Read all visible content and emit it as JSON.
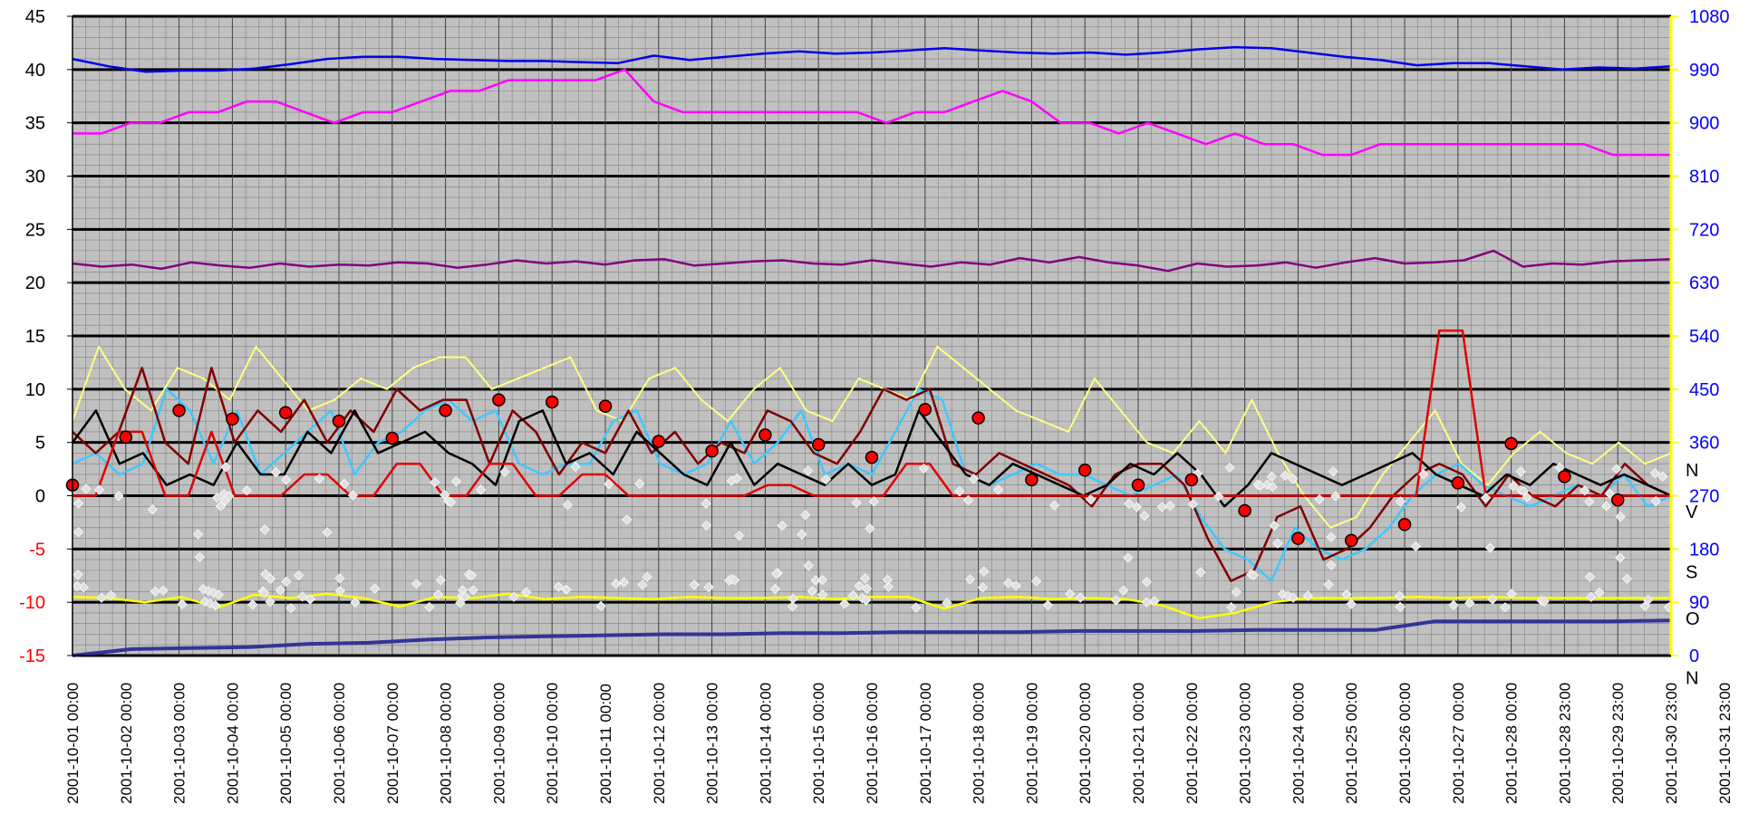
{
  "chart_data": {
    "type": "line",
    "title": "",
    "xlabel": "",
    "ylabel": "",
    "ylim": [
      -15,
      45
    ],
    "y2lim": [
      0,
      1080
    ],
    "grid": true,
    "legend": "none",
    "x_tick_labels": [
      "2001-10-01 00:00",
      "2001-10-02 00:00",
      "2001-10-03 00:00",
      "2001-10-04 00:00",
      "2001-10-05 00:00",
      "2001-10-06 00:00",
      "2001-10-07 00:00",
      "2001-10-08 00:00",
      "2001-10-09 00:00",
      "2001-10-10 00:00",
      "2001-10-11 00:00",
      "2001-10-12 00:00",
      "2001-10-13 00:00",
      "2001-10-14 00:00",
      "2001-10-15 00:00",
      "2001-10-16 00:00",
      "2001-10-17 00:00",
      "2001-10-18 00:00",
      "2001-10-19 00:00",
      "2001-10-20 00:00",
      "2001-10-21 00:00",
      "2001-10-22 00:00",
      "2001-10-23 00:00",
      "2001-10-24 00:00",
      "2001-10-25 00:00",
      "2001-10-26 00:00",
      "2001-10-27 00:00",
      "2001-10-28 00:00",
      "2001-10-28 23:00",
      "2001-10-29 23:00",
      "2001-10-30 23:00",
      "2001-10-31 23:00"
    ],
    "y_ticks_left": [
      "45",
      "40",
      "35",
      "30",
      "25",
      "20",
      "15",
      "10",
      "5",
      "0",
      "-5",
      "-10",
      "-15"
    ],
    "y_ticks_right": [
      "1080",
      "990",
      "900",
      "810",
      "720",
      "630",
      "540",
      "450",
      "360",
      "270",
      "180",
      "90",
      "0"
    ],
    "compass_labels": [
      {
        "text": "N",
        "value": 315
      },
      {
        "text": "V",
        "value": 245
      },
      {
        "text": "S",
        "value": 143
      },
      {
        "text": "O",
        "value": 64
      },
      {
        "text": "N",
        "value": -36
      }
    ],
    "series": [
      {
        "color": "#0000ee",
        "axis": "left",
        "values": [
          41,
          40.3,
          39.8,
          39.9,
          39.9,
          40.1,
          40.5,
          41,
          41.2,
          41.2,
          41,
          40.9,
          40.8,
          40.8,
          40.7,
          40.6,
          41.3,
          40.9,
          41.2,
          41.5,
          41.7,
          41.5,
          41.6,
          41.8,
          42,
          41.8,
          41.6,
          41.5,
          41.6,
          41.4,
          41.6,
          41.9,
          42.1,
          42,
          41.6,
          41.2,
          40.9,
          40.4,
          40.6,
          40.6,
          40.3,
          40,
          40.2,
          40.1,
          40.3
        ]
      },
      {
        "color": "#ff00ff",
        "axis": "left",
        "values": [
          34,
          34,
          35,
          35,
          36,
          36,
          37,
          37,
          36,
          35,
          36,
          36,
          37,
          38,
          38,
          39,
          39,
          39,
          39,
          40,
          37,
          36,
          36,
          36,
          36,
          36,
          36,
          36,
          35,
          36,
          36,
          37,
          38,
          37,
          35,
          35,
          34,
          35,
          34,
          33,
          34,
          33,
          33,
          32,
          32,
          33,
          33,
          33,
          33,
          33,
          33,
          33,
          33,
          32,
          32,
          32
        ]
      },
      {
        "color": "#800080",
        "axis": "left",
        "values": [
          21.8,
          21.5,
          21.7,
          21.3,
          21.9,
          21.6,
          21.4,
          21.8,
          21.5,
          21.7,
          21.6,
          21.9,
          21.8,
          21.4,
          21.7,
          22.1,
          21.8,
          22,
          21.7,
          22.1,
          22.2,
          21.6,
          21.8,
          22,
          22.1,
          21.8,
          21.7,
          22.1,
          21.8,
          21.5,
          21.9,
          21.7,
          22.3,
          21.9,
          22.4,
          21.9,
          21.6,
          21.1,
          21.8,
          21.5,
          21.6,
          21.9,
          21.4,
          21.9,
          22.3,
          21.8,
          21.9,
          22.1,
          23,
          21.5,
          21.8,
          21.7,
          22,
          22.1,
          22.2
        ]
      },
      {
        "color": "#ffff80",
        "axis": "left",
        "values": [
          7,
          14,
          10,
          8,
          12,
          11,
          9,
          14,
          11,
          8,
          9,
          11,
          10,
          12,
          13,
          13,
          10,
          11,
          12,
          13,
          8,
          7,
          11,
          12,
          9,
          7,
          10,
          12,
          8,
          7,
          11,
          10,
          9,
          14,
          12,
          10,
          8,
          7,
          6,
          11,
          8,
          5,
          4,
          7,
          4,
          9,
          4,
          0,
          -3,
          -2,
          2,
          5,
          8,
          3,
          1,
          4,
          6,
          4,
          3,
          5,
          3,
          4
        ]
      },
      {
        "color": "#40c8ff",
        "axis": "left",
        "values": [
          3,
          4,
          2,
          3,
          10,
          8,
          3,
          8,
          2,
          4,
          6,
          8,
          2,
          5,
          6,
          8,
          9,
          7,
          8,
          3,
          2,
          3,
          3,
          7,
          8,
          3,
          2,
          3,
          7,
          3,
          5,
          8,
          2,
          3,
          2,
          6,
          10,
          9,
          2,
          1,
          2,
          3,
          2,
          2,
          1,
          0,
          1,
          2,
          -2,
          -5,
          -6,
          -8,
          -3,
          -5,
          -6,
          -5,
          -3,
          0,
          2,
          3,
          1,
          0,
          -1,
          0,
          1,
          0,
          2,
          -1,
          0
        ]
      },
      {
        "color": "#800000",
        "axis": "left",
        "values": [
          6,
          4,
          6,
          12,
          5,
          3,
          12,
          5,
          8,
          6,
          9,
          5,
          8,
          6,
          10,
          8,
          9,
          9,
          3,
          8,
          6,
          2,
          5,
          4,
          8,
          4,
          6,
          3,
          5,
          4,
          8,
          7,
          4,
          3,
          6,
          10,
          9,
          10,
          3,
          2,
          4,
          3,
          2,
          1,
          -1,
          2,
          3,
          3,
          1,
          -4,
          -8,
          -7,
          -2,
          -1,
          -6,
          -5,
          -3,
          0,
          2,
          3,
          2,
          -1,
          2,
          0,
          -1,
          1,
          0,
          3,
          1,
          0
        ]
      },
      {
        "color": "#000000",
        "axis": "left",
        "values": [
          5,
          8,
          3,
          4,
          1,
          2,
          1,
          5,
          2,
          2,
          6,
          4,
          8,
          4,
          5,
          6,
          4,
          3,
          1,
          7,
          8,
          3,
          4,
          2,
          6,
          4,
          2,
          1,
          5,
          1,
          3,
          2,
          1,
          3,
          1,
          2,
          8,
          5,
          2,
          1,
          3,
          2,
          1,
          0,
          1,
          3,
          2,
          4,
          2,
          -1,
          1,
          4,
          3,
          2,
          1,
          2,
          3,
          4,
          2,
          1,
          0,
          2,
          1,
          3,
          2,
          1,
          2,
          1,
          0
        ]
      },
      {
        "color": "#e00000",
        "axis": "left",
        "values": [
          0,
          0,
          6,
          6,
          0,
          0,
          6,
          0,
          0,
          0,
          2,
          2,
          0,
          0,
          3,
          3,
          0,
          0,
          3,
          3,
          0,
          0,
          2,
          2,
          0,
          0,
          0,
          0,
          0,
          0,
          1,
          1,
          0,
          0,
          0,
          0,
          3,
          3,
          0,
          0,
          0,
          0,
          0,
          0,
          0,
          0,
          0,
          0,
          0,
          0,
          0,
          0,
          0,
          0,
          0,
          0,
          0,
          0,
          0,
          15.5,
          15.5,
          0,
          0,
          0,
          0,
          0,
          0,
          0,
          0,
          0
        ]
      },
      {
        "color": "#ffff00",
        "axis": "left",
        "values": [
          -9.5,
          -9.6,
          -10,
          -9.5,
          -10.5,
          -9.3,
          -9.6,
          -9.2,
          -9.6,
          -10.4,
          -9.5,
          -9.6,
          -9.2,
          -9.7,
          -9.5,
          -9.6,
          -9.7,
          -9.5,
          -9.6,
          -9.6,
          -9.5,
          -9.7,
          -9.5,
          -9.5,
          -10.6,
          -9.6,
          -9.5,
          -9.7,
          -9.6,
          -9.7,
          -10.3,
          -11.5,
          -11,
          -10,
          -9.6,
          -9.6,
          -9.6,
          -9.5,
          -9.6,
          -9.5,
          -9.6,
          -9.6,
          -9.6,
          -9.6,
          -9.6
        ]
      },
      {
        "color": "#333399",
        "axis": "left",
        "values": [
          -15,
          -14.4,
          -14.3,
          -14.2,
          -13.9,
          -13.8,
          -13.5,
          -13.3,
          -13.2,
          -13.1,
          -13,
          -13,
          -12.9,
          -12.9,
          -12.8,
          -12.8,
          -12.8,
          -12.7,
          -12.7,
          -12.7,
          -12.6,
          -12.6,
          -12.6,
          -11.8,
          -11.8,
          -11.8,
          -11.8,
          -11.7
        ]
      }
    ],
    "markers": [
      {
        "day": 0,
        "value": 1
      },
      {
        "day": 1,
        "value": 5.5
      },
      {
        "day": 2,
        "value": 8
      },
      {
        "day": 3,
        "value": 7.2
      },
      {
        "day": 4,
        "value": 7.8
      },
      {
        "day": 5,
        "value": 7
      },
      {
        "day": 6,
        "value": 5.4
      },
      {
        "day": 7,
        "value": 8
      },
      {
        "day": 8,
        "value": 9
      },
      {
        "day": 9,
        "value": 8.8
      },
      {
        "day": 10,
        "value": 8.4
      },
      {
        "day": 11,
        "value": 5.1
      },
      {
        "day": 12,
        "value": 4.2
      },
      {
        "day": 13,
        "value": 5.7
      },
      {
        "day": 14,
        "value": 4.8
      },
      {
        "day": 15,
        "value": 3.6
      },
      {
        "day": 16,
        "value": 8.1
      },
      {
        "day": 17,
        "value": 7.3
      },
      {
        "day": 18,
        "value": 1.5
      },
      {
        "day": 19,
        "value": 2.4
      },
      {
        "day": 20,
        "value": 1
      },
      {
        "day": 21,
        "value": 1.5
      },
      {
        "day": 22,
        "value": -1.4
      },
      {
        "day": 23,
        "value": -4
      },
      {
        "day": 24,
        "value": -4.2
      },
      {
        "day": 25,
        "value": -2.7
      },
      {
        "day": 26,
        "value": 1.2
      },
      {
        "day": 27,
        "value": 4.9
      },
      {
        "day": 28,
        "value": 1.8
      },
      {
        "day": 29,
        "value": -0.4
      }
    ]
  }
}
